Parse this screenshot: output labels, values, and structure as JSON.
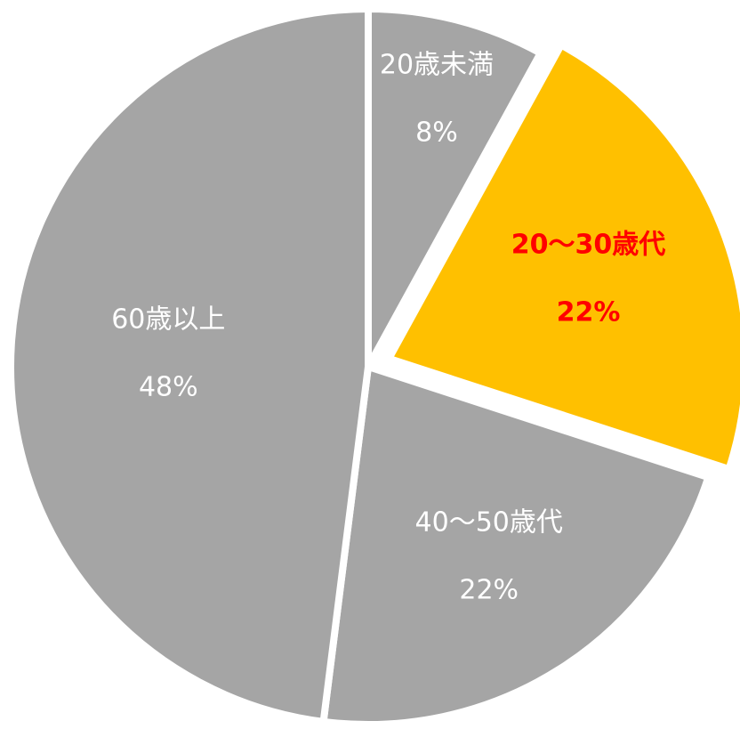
{
  "chart_data": {
    "type": "pie",
    "categories": [
      "20歳未満",
      "20〜30歳代",
      "40〜50歳代",
      "60歳以上"
    ],
    "values": [
      8,
      22,
      22,
      48
    ],
    "value_labels": [
      "8%",
      "22%",
      "22%",
      "48%"
    ],
    "colors": [
      "#a5a5a5",
      "#ffc000",
      "#a5a5a5",
      "#a5a5a5"
    ],
    "label_colors": [
      "#ffffff",
      "#ff0000",
      "#ffffff",
      "#ffffff"
    ],
    "explode": [
      false,
      true,
      false,
      false
    ]
  }
}
